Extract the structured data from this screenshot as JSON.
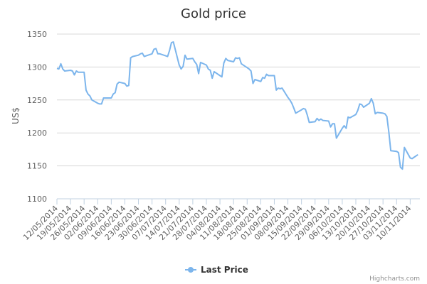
{
  "chart_data": {
    "type": "line",
    "title": "Gold price",
    "ylabel": "US$",
    "ylim": [
      1100,
      1350
    ],
    "yticks": [
      1100,
      1150,
      1200,
      1250,
      1300,
      1350
    ],
    "grid": "horizontal",
    "legend_placement": "bottom-center",
    "series": [
      {
        "name": "Last Price",
        "color": "#7cb5ec",
        "dates": [
          "2014-05-12",
          "2014-05-13",
          "2014-05-14",
          "2014-05-15",
          "2014-05-16",
          "2014-05-19",
          "2014-05-20",
          "2014-05-21",
          "2014-05-22",
          "2014-05-23",
          "2014-05-26",
          "2014-05-27",
          "2014-05-28",
          "2014-05-29",
          "2014-05-30",
          "2014-06-02",
          "2014-06-03",
          "2014-06-04",
          "2014-06-05",
          "2014-06-06",
          "2014-06-09",
          "2014-06-10",
          "2014-06-11",
          "2014-06-12",
          "2014-06-13",
          "2014-06-16",
          "2014-06-17",
          "2014-06-18",
          "2014-06-19",
          "2014-06-20",
          "2014-06-23",
          "2014-06-24",
          "2014-06-25",
          "2014-06-26",
          "2014-06-27",
          "2014-06-30",
          "2014-07-01",
          "2014-07-02",
          "2014-07-03",
          "2014-07-04",
          "2014-07-07",
          "2014-07-08",
          "2014-07-09",
          "2014-07-10",
          "2014-07-11",
          "2014-07-14",
          "2014-07-15",
          "2014-07-16",
          "2014-07-17",
          "2014-07-18",
          "2014-07-21",
          "2014-07-22",
          "2014-07-23",
          "2014-07-24",
          "2014-07-25",
          "2014-07-28",
          "2014-07-29",
          "2014-07-30",
          "2014-07-31",
          "2014-08-01",
          "2014-08-04",
          "2014-08-05",
          "2014-08-06",
          "2014-08-07",
          "2014-08-08",
          "2014-08-11",
          "2014-08-12",
          "2014-08-13",
          "2014-08-14",
          "2014-08-15",
          "2014-08-18",
          "2014-08-19",
          "2014-08-20",
          "2014-08-21",
          "2014-08-22",
          "2014-08-25",
          "2014-08-26",
          "2014-08-27",
          "2014-08-28",
          "2014-08-29",
          "2014-09-01",
          "2014-09-02",
          "2014-09-03",
          "2014-09-04",
          "2014-09-05",
          "2014-09-08",
          "2014-09-09",
          "2014-09-10",
          "2014-09-11",
          "2014-09-12",
          "2014-09-15",
          "2014-09-16",
          "2014-09-17",
          "2014-09-18",
          "2014-09-19",
          "2014-09-22",
          "2014-09-23",
          "2014-09-24",
          "2014-09-25",
          "2014-09-26",
          "2014-09-29",
          "2014-09-30",
          "2014-10-01",
          "2014-10-02",
          "2014-10-03",
          "2014-10-06",
          "2014-10-07",
          "2014-10-08",
          "2014-10-09",
          "2014-10-10",
          "2014-10-13",
          "2014-10-14",
          "2014-10-15",
          "2014-10-16",
          "2014-10-17",
          "2014-10-20",
          "2014-10-21",
          "2014-10-22",
          "2014-10-23",
          "2014-10-24",
          "2014-10-27",
          "2014-10-28",
          "2014-10-29",
          "2014-10-30",
          "2014-10-31",
          "2014-11-03",
          "2014-11-04",
          "2014-11-05",
          "2014-11-06",
          "2014-11-07",
          "2014-11-10",
          "2014-11-11",
          "2014-11-12",
          "2014-11-13",
          "2014-11-14"
        ],
        "values": [
          1298,
          1297,
          1305,
          1297,
          1294,
          1295,
          1294,
          1288,
          1294,
          1292,
          1292,
          1265,
          1259,
          1256,
          1250,
          1245,
          1244,
          1244,
          1253,
          1253,
          1253,
          1259,
          1261,
          1274,
          1277,
          1275,
          1271,
          1272,
          1314,
          1316,
          1318,
          1320,
          1321,
          1316,
          1317,
          1320,
          1327,
          1328,
          1320,
          1320,
          1317,
          1316,
          1325,
          1337,
          1338,
          1303,
          1297,
          1301,
          1318,
          1312,
          1313,
          1308,
          1304,
          1290,
          1307,
          1303,
          1297,
          1295,
          1283,
          1293,
          1287,
          1285,
          1306,
          1313,
          1310,
          1308,
          1314,
          1313,
          1314,
          1305,
          1299,
          1297,
          1294,
          1275,
          1281,
          1278,
          1284,
          1283,
          1289,
          1287,
          1287,
          1265,
          1268,
          1267,
          1268,
          1254,
          1250,
          1245,
          1238,
          1230,
          1235,
          1237,
          1236,
          1227,
          1216,
          1217,
          1222,
          1219,
          1221,
          1219,
          1218,
          1209,
          1214,
          1214,
          1192,
          1207,
          1211,
          1207,
          1224,
          1223,
          1228,
          1234,
          1244,
          1243,
          1239,
          1245,
          1252,
          1245,
          1229,
          1231,
          1230,
          1229,
          1225,
          1201,
          1173,
          1172,
          1170,
          1148,
          1145,
          1178,
          1162,
          1161,
          1163,
          1165,
          1167
        ]
      }
    ],
    "x_tick_labels": [
      "12/05/2014",
      "19/05/2014",
      "26/05/2014",
      "02/06/2014",
      "09/06/2014",
      "16/06/2014",
      "23/06/2014",
      "30/06/2014",
      "07/07/2014",
      "14/07/2014",
      "21/07/2014",
      "28/07/2014",
      "04/08/2014",
      "11/08/2014",
      "18/08/2014",
      "25/08/2014",
      "01/09/2014",
      "08/09/2014",
      "15/09/2014",
      "22/09/2014",
      "29/09/2014",
      "06/10/2014",
      "13/10/2014",
      "20/10/2014",
      "27/10/2014",
      "03/11/2014",
      "10/11/2014"
    ],
    "x_tick_dates": [
      "2014-05-12",
      "2014-05-19",
      "2014-05-26",
      "2014-06-02",
      "2014-06-09",
      "2014-06-16",
      "2014-06-23",
      "2014-06-30",
      "2014-07-07",
      "2014-07-14",
      "2014-07-21",
      "2014-07-28",
      "2014-08-04",
      "2014-08-11",
      "2014-08-18",
      "2014-08-25",
      "2014-09-01",
      "2014-09-08",
      "2014-09-15",
      "2014-09-22",
      "2014-09-29",
      "2014-10-06",
      "2014-10-13",
      "2014-10-20",
      "2014-10-27",
      "2014-11-03",
      "2014-11-10"
    ]
  },
  "credits": "Highcharts.com"
}
